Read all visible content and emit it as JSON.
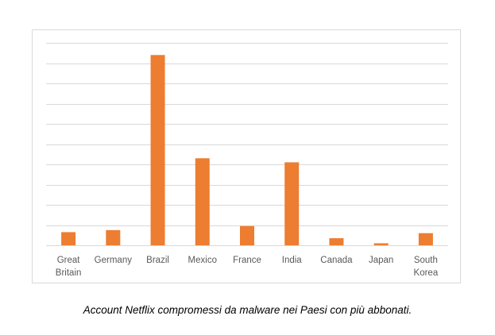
{
  "chart_data": {
    "type": "bar",
    "categories": [
      "Great Britain",
      "Germany",
      "Brazil",
      "Mexico",
      "France",
      "India",
      "Canada",
      "Japan",
      "South Korea"
    ],
    "category_lines": [
      [
        "Great",
        "Britain"
      ],
      [
        "Germany"
      ],
      [
        "Brazil"
      ],
      [
        "Mexico"
      ],
      [
        "France"
      ],
      [
        "India"
      ],
      [
        "Canada"
      ],
      [
        "Japan"
      ],
      [
        "South",
        "Korea"
      ]
    ],
    "values": [
      0.65,
      0.75,
      9.4,
      4.3,
      0.95,
      4.1,
      0.35,
      0.1,
      0.6
    ],
    "ylim": [
      0,
      10
    ],
    "ystep": 1,
    "grid": true,
    "legend": "none",
    "color": "#ED7D31",
    "gridline_color": "#d9d9d9",
    "title": "",
    "xlabel": "",
    "ylabel": ""
  },
  "caption": "Account Netflix compromessi da malware nei Paesi con più abbonati."
}
